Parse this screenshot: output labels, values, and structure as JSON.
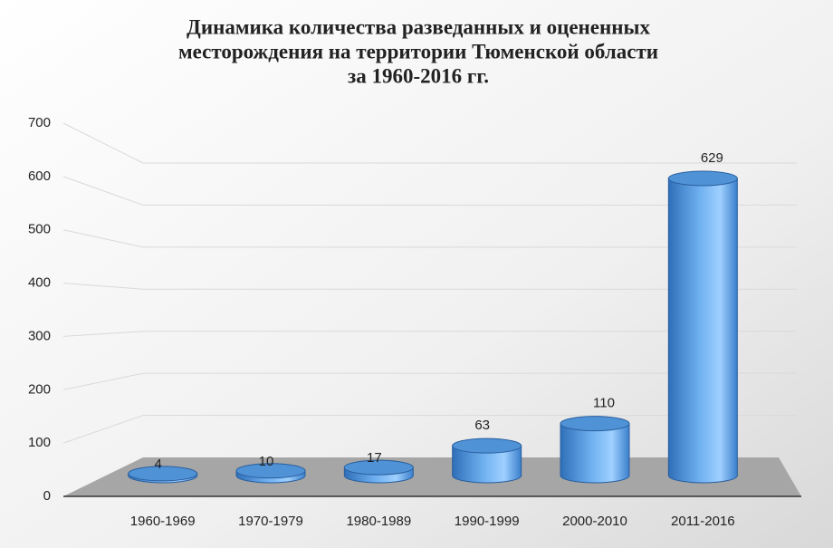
{
  "chart_data": {
    "type": "bar3d",
    "title": [
      "Динамика  количества  разведанных и оцененных",
      "месторождения на территории  Тюменской области",
      "за 1960-2016 гг."
    ],
    "categories": [
      "1960-1969",
      "1970-1979",
      "1980-1989",
      "1990-1999",
      "2000-2010",
      "2011-2016"
    ],
    "values": [
      4,
      10,
      17,
      63,
      110,
      629
    ],
    "color": "#4a8fd8",
    "ylim": [
      0,
      700
    ],
    "yticks": [
      0,
      100,
      200,
      300,
      400,
      500,
      600,
      700
    ],
    "grid": true
  }
}
